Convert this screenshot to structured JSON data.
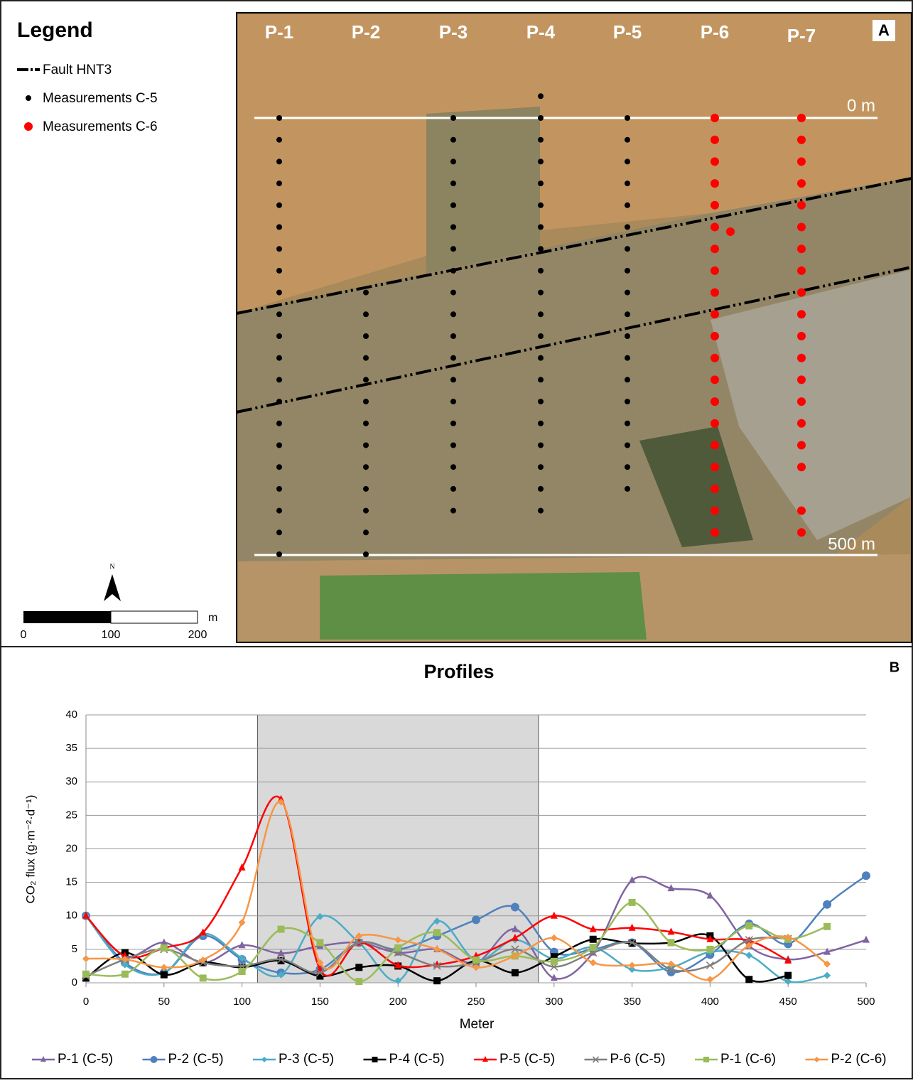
{
  "map": {
    "panel_label": "A",
    "legend_title": "Legend",
    "legend_items": [
      "Fault HNT3",
      "Measurements C-5",
      "Measurements C-6"
    ],
    "north": "N",
    "scale_unit": "m",
    "scale_labels": [
      0,
      100,
      200
    ],
    "profile_labels": [
      "P-1",
      "P-2",
      "P-3",
      "P-4",
      "P-5",
      "P-6",
      "P-7"
    ],
    "start_label": "0 m",
    "end_label": "500 m"
  },
  "chart_data": {
    "type": "line",
    "panel_label": "B",
    "title": "Profiles",
    "x_label": "Meter",
    "y_label": "CO₂ flux (g·m⁻²·d⁻¹)",
    "x": [
      0,
      25,
      50,
      75,
      100,
      125,
      150,
      175,
      200,
      225,
      250,
      275,
      300,
      325,
      350,
      375,
      400,
      425,
      450,
      475,
      500
    ],
    "xlim": [
      0,
      500
    ],
    "xticks": [
      0,
      50,
      100,
      150,
      200,
      250,
      300,
      350,
      400,
      450,
      500
    ],
    "ylim": [
      0,
      40
    ],
    "yticks": [
      0,
      5,
      10,
      15,
      20,
      25,
      30,
      35,
      40
    ],
    "grid": true,
    "shaded_xrange": [
      110,
      290
    ],
    "legend_position": "bottom",
    "series": [
      {
        "name": "P-1 (C-5)",
        "color": "#8064a2",
        "marker": "triangle",
        "values": [
          10,
          4,
          6,
          3,
          5.6,
          4.4,
          5.5,
          6,
          4.5,
          5,
          3,
          8,
          0.7,
          4.5,
          15.3,
          14.1,
          13,
          5.5,
          3.5,
          4.6,
          6.4
        ]
      },
      {
        "name": "P-2 (C-5)",
        "color": "#4f81bd",
        "marker": "circle",
        "values": [
          10,
          3,
          1.5,
          7,
          3.5,
          1.5,
          2,
          6,
          5,
          7,
          9.4,
          11.3,
          4.6,
          5,
          6,
          1.6,
          4.2,
          8.8,
          5.8,
          11.7,
          16
        ]
      },
      {
        "name": "P-3 (C-5)",
        "color": "#4bacc6",
        "marker": "diamond",
        "values": [
          10,
          2.7,
          1.5,
          7.3,
          3.7,
          1.2,
          9.9,
          6,
          0.3,
          9.2,
          3.4,
          6.4,
          3.6,
          5.3,
          2,
          2.3,
          4.6,
          4.1,
          0.2,
          1.1,
          null
        ]
      },
      {
        "name": "P-4 (C-5)",
        "color": "#000000",
        "marker": "square",
        "values": [
          0.7,
          4.5,
          1.2,
          3,
          2.3,
          3.3,
          1,
          2.3,
          2.5,
          0.3,
          3.3,
          1.5,
          3.9,
          6.5,
          5.9,
          6,
          7,
          0.5,
          1.1,
          null,
          null
        ]
      },
      {
        "name": "P-5 (C-5)",
        "color": "#ff0000",
        "marker": "triangle",
        "values": [
          10,
          4,
          5.2,
          7.5,
          17.2,
          27.4,
          2,
          6,
          2.6,
          2.7,
          4,
          6.7,
          10,
          8,
          8.2,
          7.6,
          6.5,
          6.3,
          3.3,
          null,
          null
        ]
      },
      {
        "name": "P-6 (C-5)",
        "color": "#7f7f7f",
        "marker": "cross",
        "values": [
          1,
          3.5,
          5,
          3,
          2.5,
          3.5,
          1.5,
          6,
          4.5,
          2.5,
          3,
          5,
          2.4,
          4.5,
          6,
          2,
          2.6,
          6.4,
          6.6,
          null,
          null
        ]
      },
      {
        "name": "P-1 (C-6)",
        "color": "#9bbb59",
        "marker": "square",
        "values": [
          1.3,
          1.3,
          5.2,
          0.7,
          1.7,
          8,
          6,
          0.2,
          5.2,
          7.5,
          3.4,
          4,
          3.2,
          5.3,
          12,
          6,
          5,
          8.5,
          6.5,
          8.4,
          null
        ]
      },
      {
        "name": "P-2 (C-6)",
        "color": "#f79646",
        "marker": "diamond",
        "values": [
          3.6,
          3.5,
          2.3,
          3.4,
          9,
          27,
          3,
          7,
          6.4,
          5,
          2.3,
          4,
          6.7,
          3,
          2.6,
          2.8,
          0.5,
          5.6,
          6.8,
          2.8,
          null
        ]
      }
    ]
  }
}
